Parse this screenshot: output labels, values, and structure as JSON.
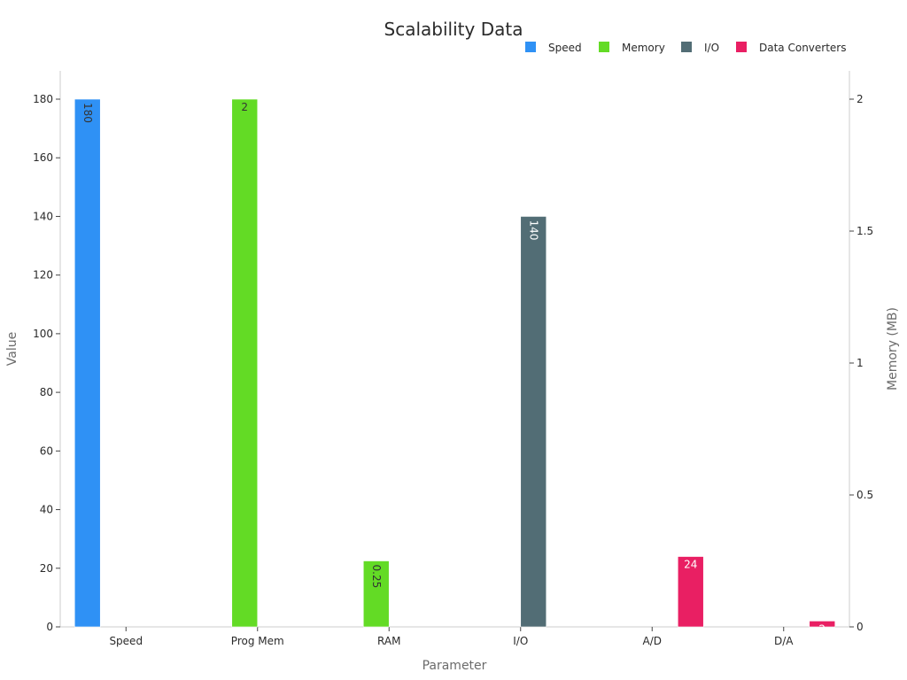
{
  "chart_data": {
    "type": "bar",
    "title": "Scalability Data",
    "xlabel": "Parameter",
    "ylabel": "Value",
    "y2label": "Memory (MB)",
    "categories": [
      "Speed",
      "Prog Mem",
      "RAM",
      "I/O",
      "A/D",
      "D/A"
    ],
    "ylim": [
      0,
      190
    ],
    "y2lim": [
      0,
      2.111
    ],
    "yticks": [
      0,
      20,
      40,
      60,
      80,
      100,
      120,
      140,
      160,
      180
    ],
    "y2ticks": [
      0,
      0.5,
      1,
      1.5,
      2
    ],
    "y2tick_labels": [
      "0",
      "0.5",
      "1",
      "1.5",
      "2"
    ],
    "grid": false,
    "legend_position": "top-right",
    "series": [
      {
        "name": "Speed",
        "color": "#2f91f5",
        "axis": "y",
        "values": [
          180,
          null,
          null,
          null,
          null,
          null
        ],
        "labels": [
          "180",
          null,
          null,
          null,
          null,
          null
        ],
        "label_color": "#333333",
        "label_rotate": true
      },
      {
        "name": "Memory",
        "color": "#63db25",
        "axis": "y2",
        "values": [
          null,
          2,
          0.25,
          null,
          null,
          null
        ],
        "labels": [
          null,
          "2",
          "0.25",
          null,
          null,
          null
        ],
        "label_color": "#333333",
        "label_rotate": [
          false,
          false,
          true,
          false,
          false,
          false
        ]
      },
      {
        "name": "I/O",
        "color": "#526d75",
        "axis": "y",
        "values": [
          null,
          null,
          null,
          140,
          null,
          null
        ],
        "labels": [
          null,
          null,
          null,
          "140",
          null,
          null
        ],
        "label_color": "#ffffff",
        "label_rotate": true
      },
      {
        "name": "Data Converters",
        "color": "#e91f63",
        "axis": "y",
        "values": [
          null,
          null,
          null,
          null,
          24,
          2
        ],
        "labels": [
          null,
          null,
          null,
          null,
          "24",
          "2"
        ],
        "label_color": "#ffffff",
        "label_rotate": false
      }
    ]
  }
}
